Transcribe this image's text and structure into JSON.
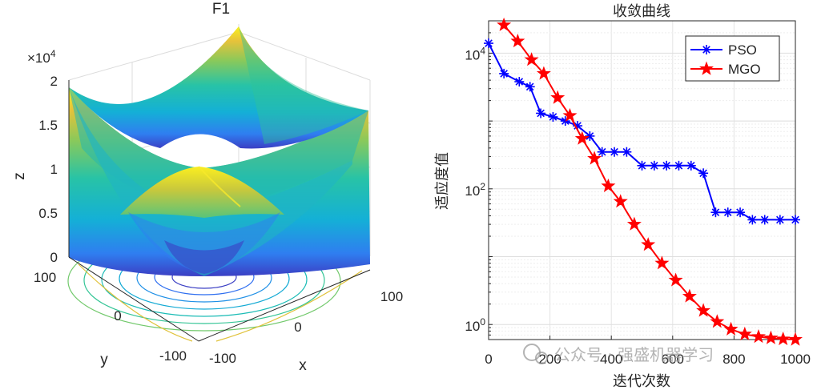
{
  "surface_plot": {
    "title": "F1",
    "xlabel": "x",
    "ylabel": "y",
    "zlabel": "z",
    "z_exponent_label": "×10",
    "z_exponent_power": "4",
    "z_ticks": [
      "0",
      "0.5",
      "1",
      "1.5",
      "2"
    ],
    "x_ticks": [
      "-100",
      "0",
      "100"
    ],
    "y_ticks": [
      "-100",
      "0",
      "100"
    ]
  },
  "chart_data": {
    "type": "line",
    "title": "收敛曲线",
    "xlabel": "迭代次数",
    "ylabel": "适应度值",
    "xlim": [
      0,
      1000
    ],
    "ylim": [
      0.6,
      30000
    ],
    "yscale": "log",
    "x_ticks": [
      "0",
      "200",
      "400",
      "600",
      "800",
      "1000"
    ],
    "y_tick_base": "10",
    "y_tick_powers": [
      "0",
      "2",
      "4"
    ],
    "legend_position": "top-right",
    "series": [
      {
        "name": "PSO",
        "color": "#0000ff",
        "marker": "asterisk",
        "x": [
          0,
          50,
          100,
          135,
          170,
          210,
          250,
          290,
          330,
          370,
          410,
          450,
          500,
          540,
          580,
          620,
          660,
          700,
          740,
          780,
          820,
          860,
          900,
          950,
          1000
        ],
        "y": [
          14000,
          5000,
          3800,
          3200,
          1300,
          1150,
          1000,
          850,
          600,
          350,
          350,
          350,
          220,
          220,
          220,
          220,
          220,
          170,
          45,
          45,
          45,
          35,
          35,
          35,
          35
        ]
      },
      {
        "name": "MGO",
        "color": "#ff0000",
        "marker": "star",
        "x": [
          50,
          95,
          140,
          180,
          225,
          265,
          305,
          345,
          390,
          430,
          475,
          520,
          565,
          610,
          655,
          700,
          745,
          790,
          835,
          880,
          920,
          960,
          1000
        ],
        "y": [
          26000,
          15000,
          8000,
          5000,
          2200,
          1200,
          550,
          280,
          110,
          65,
          30,
          15,
          8,
          4.5,
          2.6,
          1.6,
          1.1,
          0.85,
          0.72,
          0.66,
          0.63,
          0.61,
          0.6
        ]
      }
    ]
  },
  "watermark": "公众号 · 强盛机器学习"
}
